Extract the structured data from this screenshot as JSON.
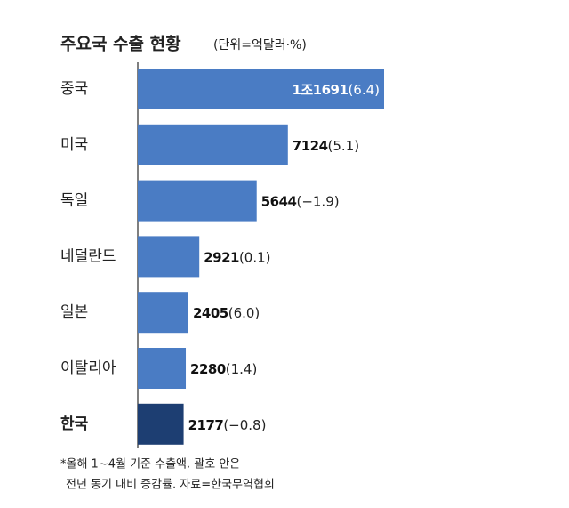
{
  "chart_data": {
    "type": "bar",
    "orientation": "horizontal",
    "title": "주요국 수출 현황",
    "subtitle": "(단위=억달러·%)",
    "categories": [
      "중국",
      "미국",
      "독일",
      "네덜란드",
      "일본",
      "이탈리아",
      "한국"
    ],
    "values": [
      11691,
      7124,
      5644,
      2921,
      2405,
      2280,
      2177
    ],
    "value_labels": [
      "1조1691",
      "7124",
      "5644",
      "2921",
      "2405",
      "2280",
      "2177"
    ],
    "growth_labels": [
      "(6.4)",
      "(5.1)",
      "(−1.9)",
      "(0.1)",
      "(6.0)",
      "(1.4)",
      "(−0.8)"
    ],
    "colors": [
      "#4a7cc4",
      "#4a7cc4",
      "#4a7cc4",
      "#4a7cc4",
      "#4a7cc4",
      "#4a7cc4",
      "#1d3e72"
    ],
    "notes": [
      "*올해 1~4월 기준 수출액. 괄호 안은",
      "전년 동기 대비 증감률. 자료=한국무역협회"
    ]
  }
}
